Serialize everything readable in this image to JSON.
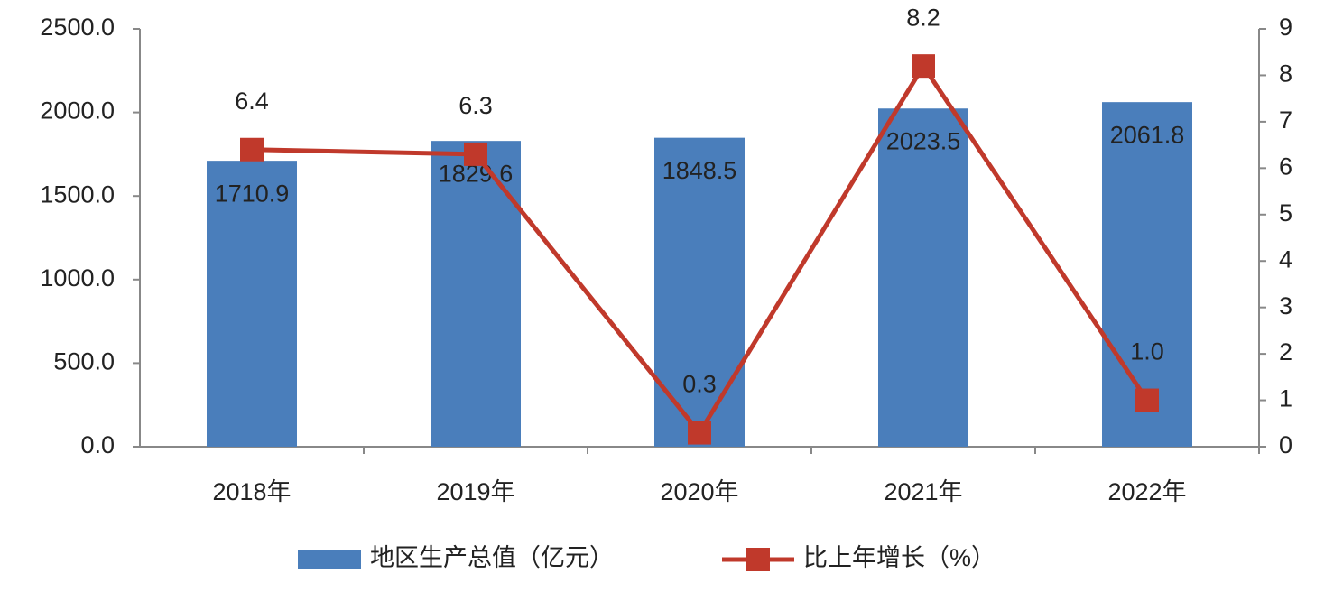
{
  "chart_data": {
    "type": "bar",
    "categories": [
      "2018年",
      "2019年",
      "2020年",
      "2021年",
      "2022年"
    ],
    "series": [
      {
        "name": "地区生产总值（亿元）",
        "color": "#4a7ebb",
        "type": "bar",
        "values": [
          1710.9,
          1829.6,
          1848.5,
          2023.5,
          2061.8
        ]
      },
      {
        "name": "比上年增长（%）",
        "color": "#c0392b",
        "type": "line",
        "axis": "y2",
        "values": [
          6.4,
          6.3,
          0.3,
          8.2,
          1.0
        ],
        "value_labels": [
          "6.4",
          "6.3",
          "0.3",
          "8.2",
          "1.0"
        ]
      }
    ],
    "ylim": [
      0,
      2500
    ],
    "yticks": [
      {
        "value": 0,
        "label": "0.0"
      },
      {
        "value": 500,
        "label": "500.0"
      },
      {
        "value": 1000,
        "label": "1000.0"
      },
      {
        "value": 1500,
        "label": "1500.0"
      },
      {
        "value": 2000,
        "label": "2000.0"
      },
      {
        "value": 2500,
        "label": "2500.0"
      }
    ],
    "y2lim": [
      0,
      9
    ],
    "y2ticks": [
      0,
      1,
      2,
      3,
      4,
      5,
      6,
      7,
      8,
      9
    ],
    "grid": false,
    "legend": "bottom"
  }
}
